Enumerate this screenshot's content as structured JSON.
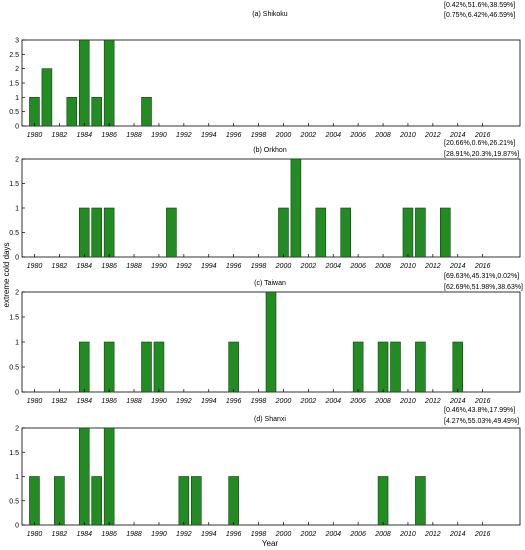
{
  "figure": {
    "ylabel": "extreme cold days",
    "xlabel": "Year",
    "bar_color": "#228b22",
    "bar_edge": "#1a3d1a"
  },
  "chart_data": [
    {
      "type": "bar",
      "title": "(a) Shikoku",
      "annotations": [
        "[0.42%,51.6%,38.59%]",
        "[0.75%,6.42%,46.59%]"
      ],
      "xlim": [
        1979,
        2019
      ],
      "ylim": [
        0,
        3
      ],
      "yticks": [
        "0",
        "0.5",
        "1",
        "1.5",
        "2",
        "2.5",
        "3"
      ],
      "xticks": [
        "1980",
        "1982",
        "1984",
        "1986",
        "1988",
        "1990",
        "1992",
        "1994",
        "1996",
        "1998",
        "2000",
        "2002",
        "2004",
        "2006",
        "2008",
        "2010",
        "2012",
        "2014",
        "2016"
      ],
      "x": [
        1980,
        1981,
        1983,
        1984,
        1985,
        1986,
        1989
      ],
      "values": [
        1,
        2,
        1,
        3,
        1,
        3,
        1
      ]
    },
    {
      "type": "bar",
      "title": "(b) Orkhon",
      "annotations": [
        "[20.66%,0.6%,26.21%]",
        "[28.91%,20.3%,19.87%]"
      ],
      "xlim": [
        1979,
        2019
      ],
      "ylim": [
        0,
        2
      ],
      "yticks": [
        "0",
        "0.5",
        "1",
        "1.5",
        "2"
      ],
      "xticks": [
        "1980",
        "1982",
        "1984",
        "1986",
        "1988",
        "1990",
        "1992",
        "1994",
        "1996",
        "1998",
        "2000",
        "2002",
        "2004",
        "2006",
        "2008",
        "2010",
        "2012",
        "2014",
        "2016"
      ],
      "x": [
        1984,
        1985,
        1986,
        1991,
        2000,
        2001,
        2003,
        2005,
        2010,
        2011,
        2013
      ],
      "values": [
        1,
        1,
        1,
        1,
        1,
        2,
        1,
        1,
        1,
        1,
        1
      ]
    },
    {
      "type": "bar",
      "title": "(c) Taiwan",
      "annotations": [
        "[69.63%,45.31%,0.02%]",
        "[62.69%,51.98%,38.63%]"
      ],
      "xlim": [
        1979,
        2019
      ],
      "ylim": [
        0,
        2
      ],
      "yticks": [
        "0",
        "0.5",
        "1",
        "1.5",
        "2"
      ],
      "xticks": [
        "1980",
        "1982",
        "1984",
        "1986",
        "1988",
        "1990",
        "1992",
        "1994",
        "1996",
        "1998",
        "2000",
        "2002",
        "2004",
        "2006",
        "2008",
        "2010",
        "2012",
        "2014",
        "2016"
      ],
      "x": [
        1984,
        1986,
        1989,
        1990,
        1996,
        1999,
        2006,
        2008,
        2009,
        2011,
        2014
      ],
      "values": [
        1,
        1,
        1,
        1,
        1,
        2,
        1,
        1,
        1,
        1,
        1
      ]
    },
    {
      "type": "bar",
      "title": "(d) Shanxi",
      "annotations": [
        "[0.46%,43.8%,17.99%]",
        "[4.27%,55.03%,49.49%]"
      ],
      "xlim": [
        1979,
        2019
      ],
      "ylim": [
        0,
        2
      ],
      "yticks": [
        "0",
        "0.5",
        "1",
        "1.5",
        "2"
      ],
      "xticks": [
        "1980",
        "1982",
        "1984",
        "1986",
        "1988",
        "1990",
        "1992",
        "1994",
        "1996",
        "1998",
        "2000",
        "2002",
        "2004",
        "2006",
        "2008",
        "2010",
        "2012",
        "2014",
        "2016"
      ],
      "x": [
        1980,
        1982,
        1984,
        1985,
        1986,
        1992,
        1993,
        1996,
        2008,
        2011
      ],
      "values": [
        1,
        1,
        2,
        1,
        2,
        1,
        1,
        1,
        1,
        1
      ]
    }
  ]
}
